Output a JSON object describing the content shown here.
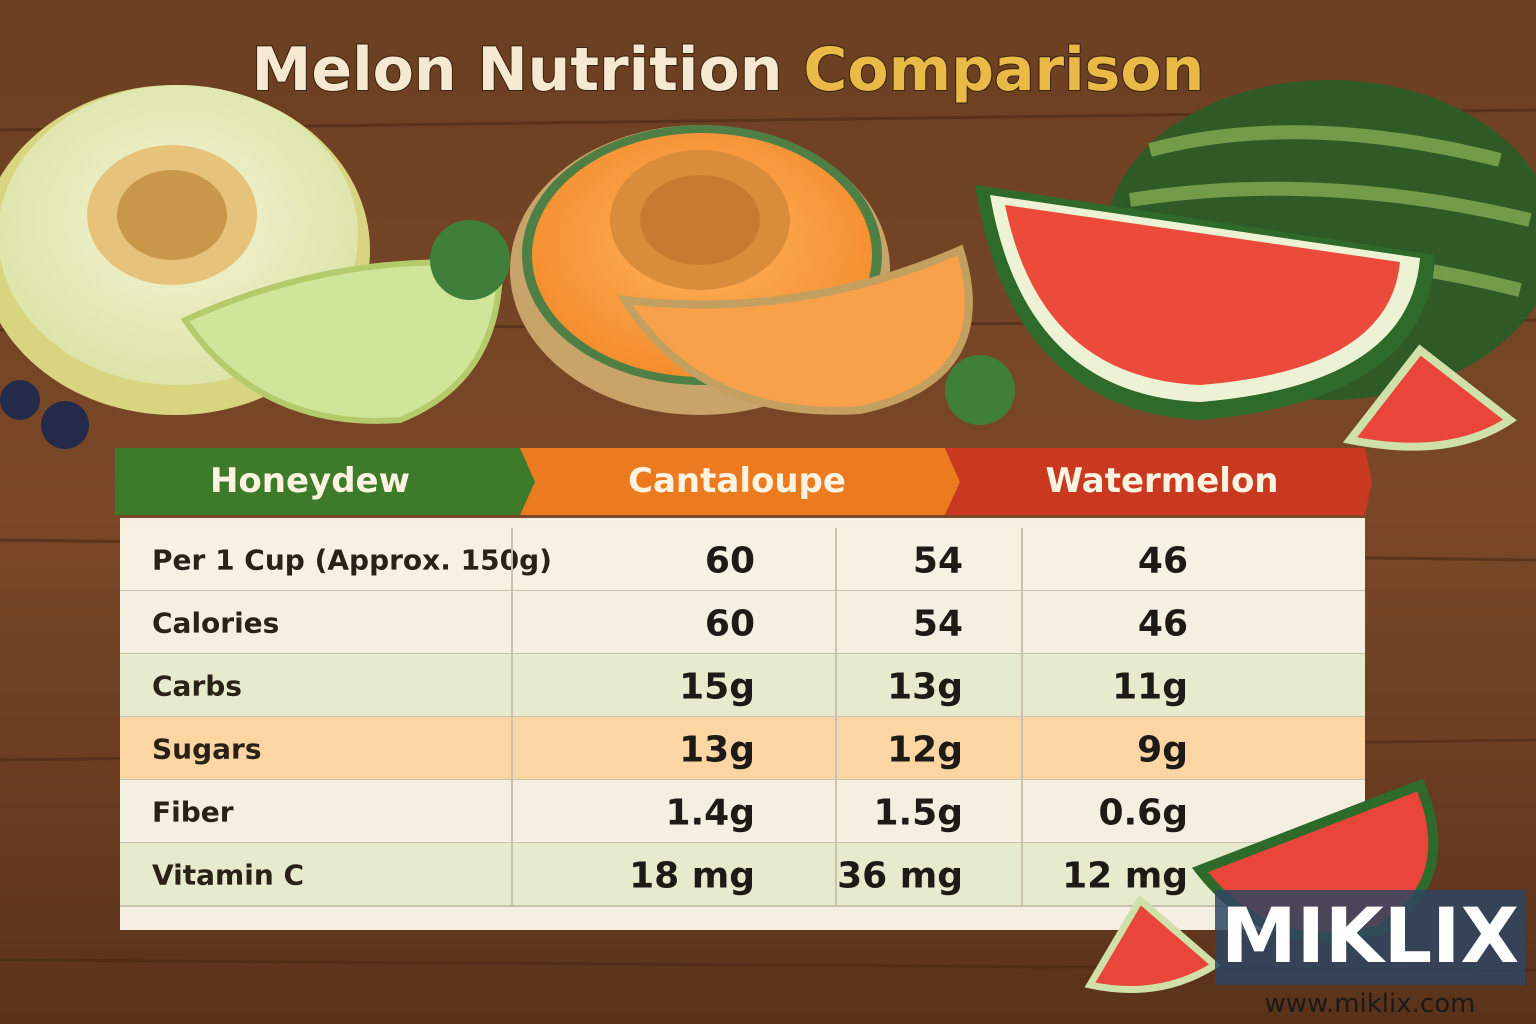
{
  "title": {
    "part1": "Melon Nutrition",
    "part2": "Comparison"
  },
  "table": {
    "headers": [
      "Honeydew",
      "Cantaloupe",
      "Watermelon"
    ],
    "rows": [
      [
        "Per 1 Cup (Approx. 150g)",
        "60",
        "54",
        "46"
      ],
      [
        "Calories",
        "60",
        "54",
        "46"
      ],
      [
        "Carbs",
        "15g",
        "13g",
        "11g"
      ],
      [
        "Sugars",
        "13g",
        "12g",
        "9g"
      ],
      [
        "Fiber",
        "1.4g",
        "1.5g",
        "0.6g"
      ],
      [
        "Vitamin C",
        "18 mg",
        "36 mg",
        "12 mg"
      ]
    ]
  },
  "watermark": {
    "brand": "MIKLIX",
    "url": "www.miklix.com"
  }
}
